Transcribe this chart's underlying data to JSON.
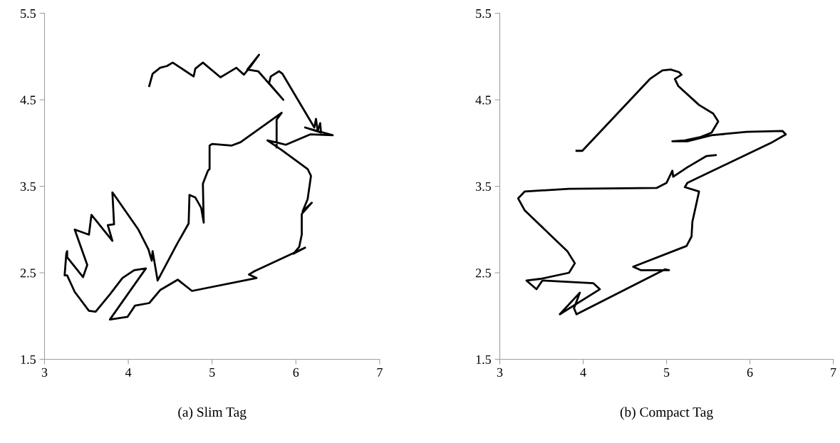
{
  "chart_data": [
    {
      "type": "line",
      "xlabel": "(a) Slim Tag",
      "xlim": [
        3,
        7
      ],
      "xticks": [
        3,
        4,
        5,
        6,
        7
      ],
      "ylim": [
        1.5,
        5.5
      ],
      "yticks": [
        1.5,
        2.5,
        3.5,
        4.5,
        5.5
      ],
      "grid": false,
      "line_style": "solid",
      "marker": "none",
      "series": [
        {
          "color": "#000000",
          "x": [
            4.25,
            4.29,
            4.38,
            4.46,
            4.53,
            4.78,
            4.8,
            4.89,
            5.1,
            5.17,
            5.29,
            5.38,
            5.47,
            5.56,
            5.42,
            5.55,
            5.85,
            5.68,
            5.7,
            5.8,
            5.84,
            6.22,
            6.24,
            6.26,
            6.29,
            6.3,
            6.11,
            6.44,
            6.17,
            6.05,
            5.88,
            5.8,
            5.66,
            5.83,
            6.14,
            6.18,
            6.14,
            6.08,
            6.19,
            6.07,
            6.07,
            6.04,
            5.97,
            6.11,
            5.51,
            5.44,
            5.53,
            4.76,
            4.59,
            4.38,
            4.25,
            4.08,
            3.99,
            3.78,
            4.21,
            4.07,
            3.93,
            3.78,
            3.61,
            3.53,
            3.36,
            3.27,
            3.24,
            3.26,
            3.27,
            3.27,
            3.46,
            3.51,
            3.36,
            3.53,
            3.56,
            3.81,
            3.755,
            3.83,
            3.81,
            4.12,
            4.24,
            4.28,
            4.29,
            4.35,
            4.58,
            4.72,
            4.73,
            4.8,
            4.87,
            4.9,
            4.89,
            4.95,
            4.97,
            4.97,
            5.0,
            5.23,
            5.34,
            5.83,
            5.77,
            5.77
          ],
          "values": [
            4.66,
            4.8,
            4.87,
            4.89,
            4.93,
            4.77,
            4.86,
            4.93,
            4.76,
            4.8,
            4.87,
            4.79,
            4.9,
            5.02,
            4.85,
            4.83,
            4.5,
            4.69,
            4.77,
            4.83,
            4.8,
            4.18,
            4.28,
            4.14,
            4.23,
            4.12,
            4.18,
            4.09,
            4.1,
            4.05,
            3.98,
            4.0,
            4.03,
            3.92,
            3.7,
            3.62,
            3.35,
            3.21,
            3.31,
            3.18,
            2.94,
            2.8,
            2.72,
            2.79,
            2.52,
            2.48,
            2.44,
            2.29,
            2.42,
            2.3,
            2.15,
            2.12,
            1.99,
            1.96,
            2.55,
            2.53,
            2.44,
            2.25,
            2.05,
            2.06,
            2.28,
            2.47,
            2.47,
            2.72,
            2.75,
            2.68,
            2.45,
            2.59,
            3.0,
            2.94,
            3.17,
            2.87,
            3.05,
            3.06,
            3.43,
            3.0,
            2.77,
            2.64,
            2.75,
            2.41,
            2.83,
            3.07,
            3.4,
            3.37,
            3.25,
            3.08,
            3.53,
            3.68,
            3.7,
            3.97,
            3.99,
            3.97,
            4.01,
            4.35,
            4.27,
            3.95
          ]
        }
      ]
    },
    {
      "type": "line",
      "xlabel": "(b) Compact Tag",
      "xlim": [
        3,
        7
      ],
      "xticks": [
        3,
        4,
        5,
        6,
        7
      ],
      "ylim": [
        1.5,
        5.5
      ],
      "yticks": [
        1.5,
        2.5,
        3.5,
        4.5,
        5.5
      ],
      "grid": false,
      "line_style": "solid",
      "marker": "none",
      "series": [
        {
          "color": "#000000",
          "x": [
            3.92,
            3.99,
            4.8,
            4.95,
            5.05,
            5.15,
            5.18,
            5.1,
            5.14,
            5.39,
            5.56,
            5.62,
            5.54,
            5.41,
            5.22,
            5.07,
            5.25,
            5.54,
            5.96,
            6.39,
            6.43,
            6.25,
            5.25,
            5.22,
            5.39,
            5.31,
            5.3,
            5.24,
            4.6,
            4.69,
            4.97,
            5.03,
            4.98,
            3.92,
            3.89,
            3.96,
            3.72,
            4.2,
            4.12,
            3.51,
            3.44,
            3.32,
            3.49,
            3.83,
            3.9,
            3.81,
            3.3,
            3.22,
            3.3,
            3.83,
            4.88,
            5.0,
            5.07,
            5.08,
            5.25,
            5.48,
            5.59
          ],
          "values": [
            3.91,
            3.91,
            4.74,
            4.84,
            4.85,
            4.82,
            4.79,
            4.74,
            4.66,
            4.44,
            4.34,
            4.25,
            4.12,
            4.07,
            4.03,
            4.02,
            4.02,
            4.09,
            4.13,
            4.14,
            4.1,
            4.0,
            3.54,
            3.49,
            3.44,
            3.09,
            2.92,
            2.81,
            2.57,
            2.53,
            2.53,
            2.53,
            2.54,
            2.02,
            2.09,
            2.27,
            2.02,
            2.31,
            2.38,
            2.41,
            2.31,
            2.41,
            2.43,
            2.5,
            2.61,
            2.75,
            3.22,
            3.36,
            3.44,
            3.47,
            3.48,
            3.54,
            3.68,
            3.61,
            3.72,
            3.85,
            3.86
          ]
        }
      ]
    }
  ]
}
